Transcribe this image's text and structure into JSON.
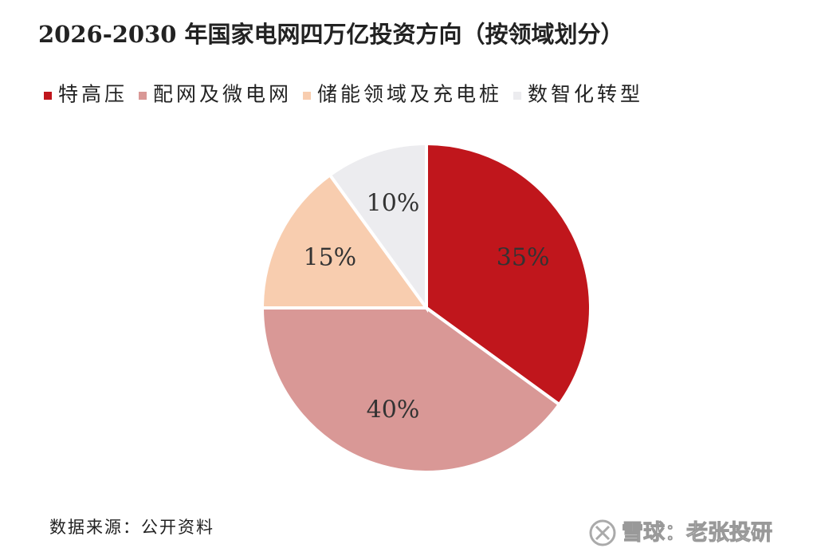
{
  "chart_data": {
    "type": "pie",
    "title": "2026-2030 年国家电网四万亿投资方向（按领域划分）",
    "categories": [
      "特高压",
      "配网及微电网",
      "储能领域及充电桩",
      "数智化转型"
    ],
    "values": [
      35,
      40,
      15,
      10
    ],
    "value_labels": [
      "35%",
      "40%",
      "15%",
      "10%"
    ],
    "colors": [
      "#c0161c",
      "#d99896",
      "#f8cdaf",
      "#ececef"
    ],
    "legend": "top",
    "source": "数据来源：公开资料",
    "watermark": "雪球：老张投研"
  }
}
